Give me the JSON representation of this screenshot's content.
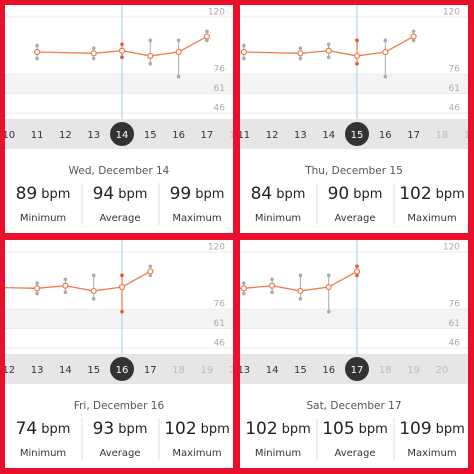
{
  "days": [
    10,
    11,
    12,
    13,
    14,
    15,
    16,
    17,
    18,
    19,
    20
  ],
  "series": {
    "average": [
      null,
      93,
      null,
      92,
      94,
      90,
      93,
      105,
      null,
      null,
      null
    ],
    "minimum": [
      null,
      88,
      null,
      88,
      89,
      84,
      74,
      102,
      null,
      null,
      null
    ],
    "maximum": [
      null,
      98,
      null,
      96,
      99,
      102,
      102,
      109,
      null,
      null,
      null
    ]
  },
  "color": "#f07a4a",
  "ylim": [
    46,
    120
  ],
  "yticks": [
    120,
    76,
    61,
    46
  ],
  "panels": [
    {
      "selected_day": 14,
      "date": "Wed, December 14",
      "stats": [
        {
          "value": 89,
          "unit": "bpm",
          "label": "Minimum"
        },
        {
          "value": 94,
          "unit": "bpm",
          "label": "Average"
        },
        {
          "value": 99,
          "unit": "bpm",
          "label": "Maximum"
        }
      ]
    },
    {
      "selected_day": 15,
      "date": "Thu, December 15",
      "stats": [
        {
          "value": 84,
          "unit": "bpm",
          "label": "Minimum"
        },
        {
          "value": 90,
          "unit": "bpm",
          "label": "Average"
        },
        {
          "value": 102,
          "unit": "bpm",
          "label": "Maximum"
        }
      ]
    },
    {
      "selected_day": 16,
      "date": "Fri, December 16",
      "stats": [
        {
          "value": 74,
          "unit": "bpm",
          "label": "Minimum"
        },
        {
          "value": 93,
          "unit": "bpm",
          "label": "Average"
        },
        {
          "value": 102,
          "unit": "bpm",
          "label": "Maximum"
        }
      ]
    },
    {
      "selected_day": 17,
      "date": "Sat, December 17",
      "stats": [
        {
          "value": 102,
          "unit": "bpm",
          "label": "Minimum"
        },
        {
          "value": 105,
          "unit": "bpm",
          "label": "Average"
        },
        {
          "value": 109,
          "unit": "bpm",
          "label": "Maximum"
        }
      ]
    }
  ]
}
